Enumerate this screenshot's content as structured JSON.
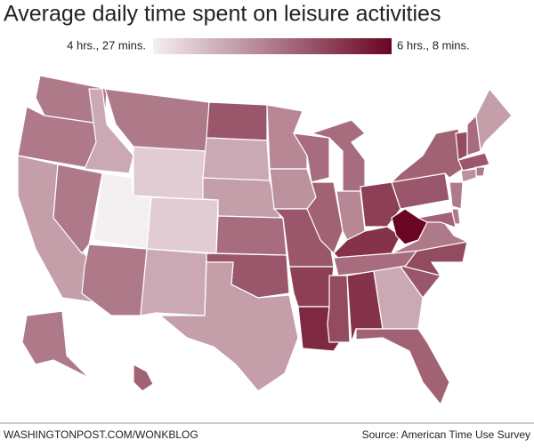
{
  "chart_data": {
    "type": "choropleth",
    "title": "Average daily time spent on leisure activities",
    "colorbar": {
      "ticks": [
        {
          "value": 267,
          "label": "4 hrs., 27 mins."
        },
        {
          "value": 368,
          "label": "6 hrs., 8 mins."
        }
      ],
      "colors": [
        "#f4eff1",
        "#6a0522"
      ]
    },
    "values": [
      318,
      318,
      302,
      318,
      297,
      318,
      282,
      267,
      282,
      318,
      297,
      333,
      302,
      302,
      323,
      333,
      297,
      312,
      307,
      333,
      343,
      353,
      323,
      328,
      323,
      312,
      343,
      348,
      323,
      338,
      348,
      297,
      328,
      333,
      338,
      318,
      368,
      333,
      328,
      338,
      323,
      302,
      333,
      318,
      307,
      318,
      318,
      328,
      318,
      328
    ],
    "footer": "WASHINGTONPOST.COM/WONKBLOG",
    "source": "Source: American Time Use Survey"
  }
}
